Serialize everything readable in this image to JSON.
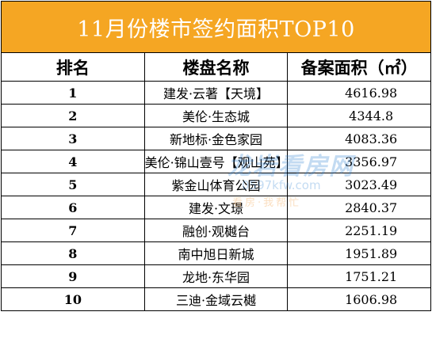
{
  "title": "11月份楼市签约面积TOP10",
  "headers": {
    "rank": "排名",
    "name": "楼盘名称",
    "area": "备案面积（㎡）"
  },
  "rows": [
    {
      "rank": "1",
      "name": "建发·云著【天境】",
      "area": "4616.98"
    },
    {
      "rank": "2",
      "name": "美伦·生态城",
      "area": "4344.8"
    },
    {
      "rank": "3",
      "name": "新地标·金色家园",
      "area": "4083.36"
    },
    {
      "rank": "4",
      "name": "美伦·锦山壹号【观山苑】",
      "area": "3356.97"
    },
    {
      "rank": "5",
      "name": "紫金山体育公园",
      "area": "3023.49"
    },
    {
      "rank": "6",
      "name": "建发·文璟",
      "area": "2840.37"
    },
    {
      "rank": "7",
      "name": "融创·观樾台",
      "area": "2251.19"
    },
    {
      "rank": "8",
      "name": "南中旭日新城",
      "area": "1951.89"
    },
    {
      "rank": "9",
      "name": "龙地·东华园",
      "area": "1751.21"
    },
    {
      "rank": "10",
      "name": "三迪·金域云樾",
      "area": "1606.98"
    }
  ],
  "watermark": {
    "logo": "龙岩看房网",
    "url": "0597kfw.com",
    "slogan": "看房·我帮忙"
  },
  "colors": {
    "title_bg": "#f5a623",
    "title_text": "#ffffff",
    "watermark_blue": "#2a7fd4",
    "watermark_orange": "#f08a1c"
  }
}
